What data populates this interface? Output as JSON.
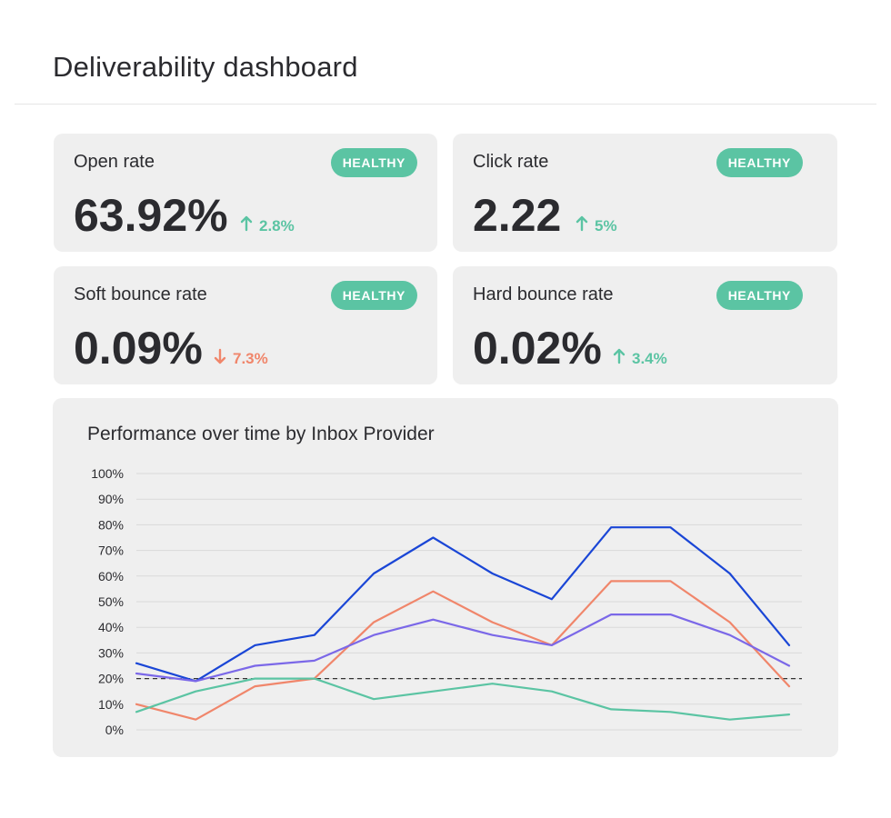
{
  "header": {
    "title": "Deliverability dashboard"
  },
  "metrics": [
    {
      "label": "Open rate",
      "badge": "HEALTHY",
      "value": "63.92%",
      "delta": "2.8%",
      "direction": "up"
    },
    {
      "label": "Click rate",
      "badge": "HEALTHY",
      "value": "2.22",
      "delta": "5%",
      "direction": "up"
    },
    {
      "label": "Soft bounce rate",
      "badge": "HEALTHY",
      "value": "0.09%",
      "delta": "7.3%",
      "direction": "down"
    },
    {
      "label": "Hard bounce rate",
      "badge": "HEALTHY",
      "value": "0.02%",
      "delta": "3.4%",
      "direction": "up"
    }
  ],
  "colors": {
    "healthy": "#5bc4a3",
    "up": "#5bc4a3",
    "down": "#f0866b",
    "card_bg": "#efefef"
  },
  "icons": {
    "up": "arrow-up-icon",
    "down": "arrow-down-icon"
  },
  "chart_data": {
    "type": "line",
    "title": "Performance over time by Inbox Provider",
    "xlabel": "",
    "ylabel": "",
    "ylim": [
      0,
      100
    ],
    "y_ticks": [
      "100%",
      "90%",
      "80%",
      "70%",
      "60%",
      "50%",
      "40%",
      "30%",
      "20%",
      "10%",
      "0%"
    ],
    "grid": true,
    "reference_line": {
      "value": 20,
      "style": "dashed"
    },
    "x": [
      1,
      2,
      3,
      4,
      5,
      6,
      7,
      8,
      9,
      10,
      11,
      12
    ],
    "series": [
      {
        "color": "#1a46d6",
        "values": [
          26,
          19,
          33,
          37,
          61,
          75,
          61,
          51,
          79,
          79,
          61,
          33
        ]
      },
      {
        "color": "#f0866b",
        "values": [
          10,
          4,
          17,
          20,
          42,
          54,
          42,
          33,
          58,
          58,
          42,
          17
        ]
      },
      {
        "color": "#7b68e8",
        "values": [
          22,
          19,
          25,
          27,
          37,
          43,
          37,
          33,
          45,
          45,
          37,
          25
        ]
      },
      {
        "color": "#5bc4a3",
        "values": [
          7,
          15,
          20,
          20,
          12,
          15,
          18,
          15,
          8,
          7,
          4,
          6
        ]
      }
    ]
  }
}
